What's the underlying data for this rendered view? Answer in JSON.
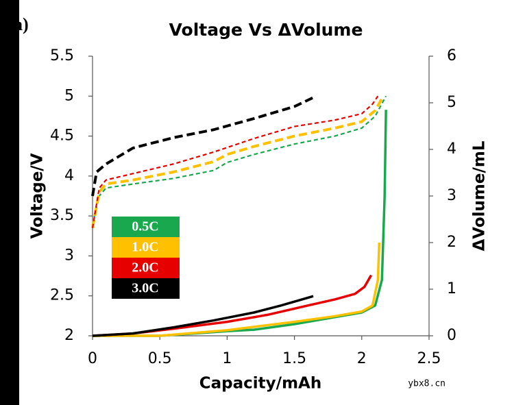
{
  "chart_data": {
    "type": "line",
    "title": "Voltage Vs ΔVolume",
    "panel_label": "a)",
    "watermark": "ybx8.cn",
    "x_label": "Capacity/mAh",
    "y_label": "Voltage/V",
    "y2_label": "ΔVolume/mL",
    "xlim": [
      0,
      2.5
    ],
    "xticks": [
      0,
      0.5,
      1,
      1.5,
      2,
      2.5
    ],
    "ylim": [
      2,
      5.5
    ],
    "yticks": [
      2,
      2.5,
      3,
      3.5,
      4,
      4.5,
      5,
      5.5
    ],
    "y2lim": [
      0,
      6
    ],
    "y2ticks": [
      0,
      1,
      2,
      3,
      4,
      5,
      6
    ],
    "grid": false,
    "series": [
      {
        "name": "0.5C",
        "color": "#1aa84f",
        "dashed": true,
        "x": [
          0,
          0.05,
          0.1,
          0.3,
          0.6,
          0.9,
          1.0,
          1.2,
          1.5,
          1.8,
          2.0,
          2.1,
          2.18
        ],
        "values": [
          3.4,
          3.75,
          3.85,
          3.9,
          3.97,
          4.07,
          4.17,
          4.27,
          4.4,
          4.5,
          4.6,
          4.75,
          5.0
        ]
      },
      {
        "name": "1.0C",
        "color": "#ffc000",
        "dashed": true,
        "x": [
          0,
          0.05,
          0.1,
          0.3,
          0.6,
          0.9,
          1.0,
          1.2,
          1.5,
          1.8,
          2.0,
          2.1,
          2.16
        ],
        "values": [
          3.35,
          3.8,
          3.9,
          3.95,
          4.05,
          4.18,
          4.27,
          4.37,
          4.5,
          4.6,
          4.68,
          4.82,
          5.0
        ]
      },
      {
        "name": "2.0C",
        "color": "#e60000",
        "dashed": true,
        "x": [
          0,
          0.05,
          0.1,
          0.3,
          0.6,
          0.9,
          1.2,
          1.5,
          1.8,
          2.0,
          2.08,
          2.12
        ],
        "values": [
          3.35,
          3.85,
          3.95,
          4.03,
          4.15,
          4.3,
          4.47,
          4.62,
          4.7,
          4.78,
          4.9,
          5.0
        ]
      },
      {
        "name": "3.0C",
        "color": "#000000",
        "dashed": true,
        "x": [
          0,
          0.03,
          0.1,
          0.3,
          0.6,
          0.9,
          1.2,
          1.5,
          1.65
        ],
        "values": [
          3.75,
          4.05,
          4.15,
          4.35,
          4.48,
          4.58,
          4.72,
          4.87,
          4.99
        ]
      },
      {
        "color": "#1aa84f",
        "axis": "y2",
        "dashed": false,
        "x": [
          0,
          0.5,
          1.0,
          1.2,
          1.5,
          1.8,
          2.0,
          2.1,
          2.15,
          2.17,
          2.18
        ],
        "values": [
          0,
          0,
          0.1,
          0.13,
          0.25,
          0.4,
          0.5,
          0.65,
          1.2,
          3.0,
          4.85
        ]
      },
      {
        "color": "#ffc000",
        "axis": "y2",
        "dashed": false,
        "x": [
          0,
          0.5,
          1.0,
          1.5,
          1.8,
          2.0,
          2.08,
          2.12,
          2.13
        ],
        "values": [
          0,
          0,
          0.12,
          0.3,
          0.42,
          0.52,
          0.65,
          1.2,
          2.0
        ]
      },
      {
        "color": "#e60000",
        "axis": "y2",
        "dashed": false,
        "x": [
          0,
          0.3,
          0.6,
          1.0,
          1.3,
          1.6,
          1.8,
          1.95,
          2.02,
          2.07
        ],
        "values": [
          0,
          0.05,
          0.15,
          0.3,
          0.45,
          0.65,
          0.78,
          0.9,
          1.05,
          1.3
        ]
      },
      {
        "color": "#000000",
        "axis": "y2",
        "dashed": false,
        "x": [
          0,
          0.3,
          0.6,
          0.9,
          1.2,
          1.4,
          1.64
        ],
        "values": [
          0,
          0.05,
          0.18,
          0.33,
          0.5,
          0.65,
          0.85
        ]
      }
    ]
  }
}
